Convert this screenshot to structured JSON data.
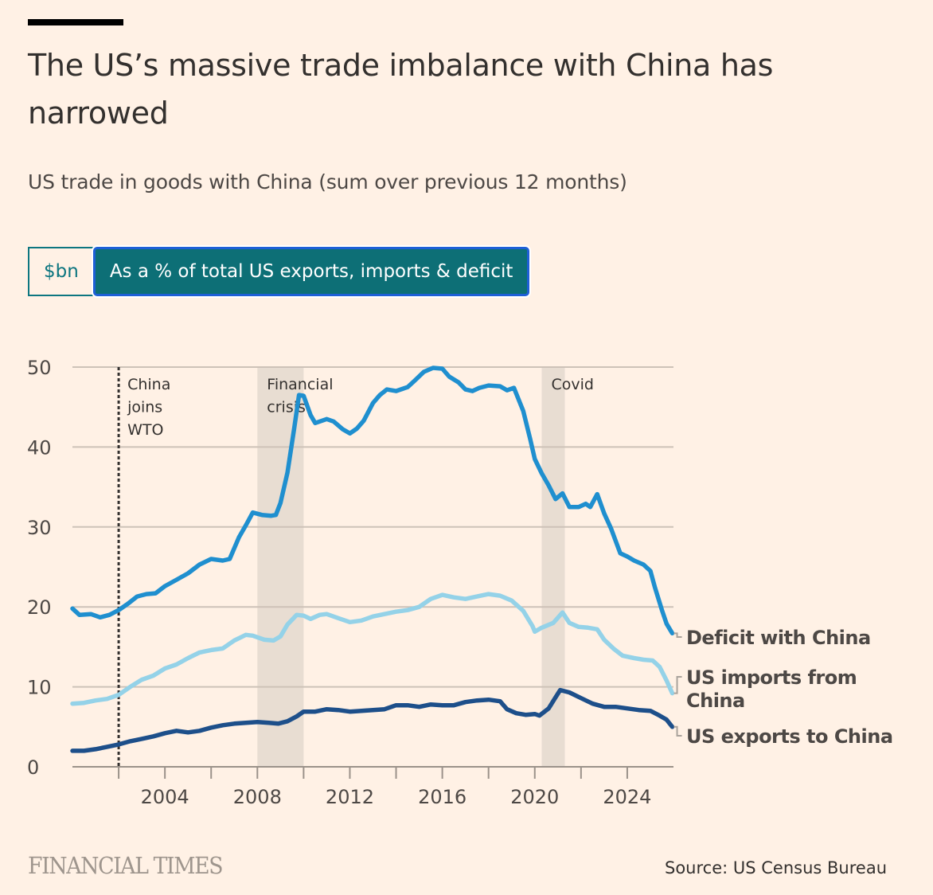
{
  "header": {
    "title": "The US’s massive trade imbalance with China has narrowed",
    "subtitle": "US trade in goods with China (sum over previous 12 months)"
  },
  "toggle": {
    "options": [
      {
        "label": "$bn",
        "selected": false
      },
      {
        "label": "As a % of total US exports, imports & deficit",
        "selected": true
      }
    ]
  },
  "footer": {
    "brand": "FINANCIAL TIMES",
    "source": "Source: US Census Bureau"
  },
  "colors": {
    "deficit": "#1f8fcf",
    "imports": "#94d2e8",
    "exports": "#1d4f8a",
    "shade": "#e8ddd2",
    "grid": "#cdc2b8",
    "axis": "#9b928a",
    "background": "#fff1e5",
    "toggle_active": "#0d6f76"
  },
  "chart_data": {
    "type": "line",
    "title": "US trade in goods with China (sum over previous 12 months)",
    "xlabel": "",
    "ylabel": "% of total US exports, imports & deficit",
    "xlim": [
      2000,
      2026
    ],
    "ylim": [
      0,
      50
    ],
    "yticks": [
      0,
      10,
      20,
      30,
      40,
      50
    ],
    "xticks": [
      2002,
      2004,
      2006,
      2008,
      2010,
      2012,
      2014,
      2016,
      2018,
      2020,
      2022,
      2024
    ],
    "xtick_labels": [
      {
        "year": 2004,
        "label": "2004"
      },
      {
        "year": 2008,
        "label": "2008"
      },
      {
        "year": 2012,
        "label": "2012"
      },
      {
        "year": 2016,
        "label": "2016"
      },
      {
        "year": 2020,
        "label": "2020"
      },
      {
        "year": 2024,
        "label": "2024"
      }
    ],
    "grid": true,
    "legend": "direct-labels-right",
    "annotations": [
      {
        "type": "vline",
        "x": 2002.0,
        "label": [
          "China",
          "joins",
          "WTO"
        ]
      },
      {
        "type": "band",
        "x0": 2008.0,
        "x1": 2010.0,
        "label": [
          "Financial",
          "crisis"
        ]
      },
      {
        "type": "band",
        "x0": 2020.3,
        "x1": 2021.3,
        "label": [
          "Covid"
        ]
      }
    ],
    "series": [
      {
        "name": "Deficit with China",
        "label_lines": [
          "Deficit with China"
        ],
        "color_key": "deficit",
        "points": [
          [
            2000.0,
            19.8
          ],
          [
            2000.3,
            19.0
          ],
          [
            2000.8,
            19.1
          ],
          [
            2001.2,
            18.7
          ],
          [
            2001.6,
            19.0
          ],
          [
            2002.0,
            19.6
          ],
          [
            2002.4,
            20.4
          ],
          [
            2002.8,
            21.3
          ],
          [
            2003.2,
            21.6
          ],
          [
            2003.6,
            21.7
          ],
          [
            2004.0,
            22.6
          ],
          [
            2004.5,
            23.4
          ],
          [
            2005.0,
            24.2
          ],
          [
            2005.5,
            25.3
          ],
          [
            2006.0,
            26.0
          ],
          [
            2006.5,
            25.8
          ],
          [
            2006.8,
            26.0
          ],
          [
            2007.2,
            28.7
          ],
          [
            2007.5,
            30.2
          ],
          [
            2007.8,
            31.8
          ],
          [
            2008.2,
            31.5
          ],
          [
            2008.6,
            31.4
          ],
          [
            2008.8,
            31.5
          ],
          [
            2009.0,
            33.0
          ],
          [
            2009.3,
            36.8
          ],
          [
            2009.6,
            42.5
          ],
          [
            2009.8,
            46.5
          ],
          [
            2010.0,
            46.4
          ],
          [
            2010.3,
            44.0
          ],
          [
            2010.5,
            43.0
          ],
          [
            2011.0,
            43.5
          ],
          [
            2011.3,
            43.2
          ],
          [
            2011.7,
            42.2
          ],
          [
            2012.0,
            41.7
          ],
          [
            2012.3,
            42.3
          ],
          [
            2012.6,
            43.3
          ],
          [
            2013.0,
            45.5
          ],
          [
            2013.3,
            46.5
          ],
          [
            2013.6,
            47.2
          ],
          [
            2014.0,
            47.0
          ],
          [
            2014.5,
            47.5
          ],
          [
            2014.8,
            48.3
          ],
          [
            2015.2,
            49.4
          ],
          [
            2015.6,
            49.9
          ],
          [
            2016.0,
            49.8
          ],
          [
            2016.3,
            48.8
          ],
          [
            2016.7,
            48.1
          ],
          [
            2017.0,
            47.2
          ],
          [
            2017.3,
            47.0
          ],
          [
            2017.6,
            47.4
          ],
          [
            2018.0,
            47.7
          ],
          [
            2018.5,
            47.6
          ],
          [
            2018.8,
            47.1
          ],
          [
            2019.1,
            47.4
          ],
          [
            2019.5,
            44.5
          ],
          [
            2019.8,
            41.0
          ],
          [
            2020.0,
            38.5
          ],
          [
            2020.3,
            36.7
          ],
          [
            2020.6,
            35.2
          ],
          [
            2020.9,
            33.5
          ],
          [
            2021.2,
            34.2
          ],
          [
            2021.5,
            32.5
          ],
          [
            2021.9,
            32.5
          ],
          [
            2022.2,
            32.9
          ],
          [
            2022.4,
            32.5
          ],
          [
            2022.7,
            34.1
          ],
          [
            2023.0,
            31.7
          ],
          [
            2023.3,
            29.8
          ],
          [
            2023.7,
            26.7
          ],
          [
            2024.0,
            26.3
          ],
          [
            2024.3,
            25.8
          ],
          [
            2024.7,
            25.3
          ],
          [
            2025.0,
            24.5
          ],
          [
            2025.2,
            22.4
          ],
          [
            2025.5,
            19.6
          ],
          [
            2025.7,
            17.9
          ],
          [
            2025.95,
            16.7
          ]
        ]
      },
      {
        "name": "US imports from China",
        "label_lines": [
          "US imports from",
          "China"
        ],
        "color_key": "imports",
        "points": [
          [
            2000.0,
            7.9
          ],
          [
            2000.5,
            8.0
          ],
          [
            2001.0,
            8.3
          ],
          [
            2001.5,
            8.5
          ],
          [
            2002.0,
            9.0
          ],
          [
            2002.5,
            10.0
          ],
          [
            2003.0,
            10.9
          ],
          [
            2003.5,
            11.4
          ],
          [
            2004.0,
            12.3
          ],
          [
            2004.5,
            12.8
          ],
          [
            2005.0,
            13.6
          ],
          [
            2005.5,
            14.3
          ],
          [
            2006.0,
            14.6
          ],
          [
            2006.5,
            14.8
          ],
          [
            2007.0,
            15.8
          ],
          [
            2007.5,
            16.5
          ],
          [
            2007.8,
            16.4
          ],
          [
            2008.3,
            15.9
          ],
          [
            2008.7,
            15.8
          ],
          [
            2009.0,
            16.3
          ],
          [
            2009.3,
            17.8
          ],
          [
            2009.7,
            19.0
          ],
          [
            2010.0,
            18.9
          ],
          [
            2010.3,
            18.5
          ],
          [
            2010.7,
            19.0
          ],
          [
            2011.0,
            19.1
          ],
          [
            2011.5,
            18.6
          ],
          [
            2012.0,
            18.1
          ],
          [
            2012.5,
            18.3
          ],
          [
            2013.0,
            18.8
          ],
          [
            2013.5,
            19.1
          ],
          [
            2014.0,
            19.4
          ],
          [
            2014.5,
            19.6
          ],
          [
            2015.0,
            20.0
          ],
          [
            2015.5,
            21.0
          ],
          [
            2016.0,
            21.5
          ],
          [
            2016.5,
            21.2
          ],
          [
            2017.0,
            21.0
          ],
          [
            2017.5,
            21.3
          ],
          [
            2018.0,
            21.6
          ],
          [
            2018.5,
            21.4
          ],
          [
            2019.0,
            20.8
          ],
          [
            2019.5,
            19.5
          ],
          [
            2019.9,
            17.6
          ],
          [
            2020.0,
            16.9
          ],
          [
            2020.3,
            17.4
          ],
          [
            2020.8,
            18.0
          ],
          [
            2021.2,
            19.3
          ],
          [
            2021.5,
            18.0
          ],
          [
            2021.9,
            17.5
          ],
          [
            2022.3,
            17.4
          ],
          [
            2022.7,
            17.2
          ],
          [
            2023.0,
            15.9
          ],
          [
            2023.4,
            14.8
          ],
          [
            2023.8,
            13.9
          ],
          [
            2024.3,
            13.6
          ],
          [
            2024.7,
            13.4
          ],
          [
            2025.1,
            13.3
          ],
          [
            2025.4,
            12.5
          ],
          [
            2025.7,
            10.8
          ],
          [
            2025.95,
            9.2
          ]
        ]
      },
      {
        "name": "US exports to China",
        "label_lines": [
          "US exports to China"
        ],
        "color_key": "exports",
        "points": [
          [
            2000.0,
            2.0
          ],
          [
            2000.5,
            2.0
          ],
          [
            2001.0,
            2.2
          ],
          [
            2001.5,
            2.5
          ],
          [
            2002.0,
            2.8
          ],
          [
            2002.5,
            3.2
          ],
          [
            2003.0,
            3.5
          ],
          [
            2003.5,
            3.8
          ],
          [
            2004.0,
            4.2
          ],
          [
            2004.5,
            4.5
          ],
          [
            2005.0,
            4.3
          ],
          [
            2005.5,
            4.5
          ],
          [
            2006.0,
            4.9
          ],
          [
            2006.5,
            5.2
          ],
          [
            2007.0,
            5.4
          ],
          [
            2007.5,
            5.5
          ],
          [
            2008.0,
            5.6
          ],
          [
            2008.5,
            5.5
          ],
          [
            2008.9,
            5.4
          ],
          [
            2009.3,
            5.7
          ],
          [
            2009.7,
            6.3
          ],
          [
            2010.0,
            6.9
          ],
          [
            2010.5,
            6.9
          ],
          [
            2011.0,
            7.2
          ],
          [
            2011.5,
            7.1
          ],
          [
            2012.0,
            6.9
          ],
          [
            2012.5,
            7.0
          ],
          [
            2013.0,
            7.1
          ],
          [
            2013.5,
            7.2
          ],
          [
            2014.0,
            7.7
          ],
          [
            2014.5,
            7.7
          ],
          [
            2015.0,
            7.5
          ],
          [
            2015.5,
            7.8
          ],
          [
            2016.0,
            7.7
          ],
          [
            2016.5,
            7.7
          ],
          [
            2017.0,
            8.1
          ],
          [
            2017.5,
            8.3
          ],
          [
            2018.0,
            8.4
          ],
          [
            2018.5,
            8.2
          ],
          [
            2018.8,
            7.2
          ],
          [
            2019.2,
            6.7
          ],
          [
            2019.6,
            6.5
          ],
          [
            2020.0,
            6.6
          ],
          [
            2020.2,
            6.4
          ],
          [
            2020.6,
            7.3
          ],
          [
            2020.9,
            8.7
          ],
          [
            2021.1,
            9.6
          ],
          [
            2021.5,
            9.3
          ],
          [
            2022.0,
            8.6
          ],
          [
            2022.5,
            7.9
          ],
          [
            2023.0,
            7.5
          ],
          [
            2023.5,
            7.5
          ],
          [
            2024.0,
            7.3
          ],
          [
            2024.5,
            7.1
          ],
          [
            2025.0,
            7.0
          ],
          [
            2025.4,
            6.4
          ],
          [
            2025.7,
            5.9
          ],
          [
            2025.95,
            5.0
          ]
        ]
      }
    ]
  }
}
